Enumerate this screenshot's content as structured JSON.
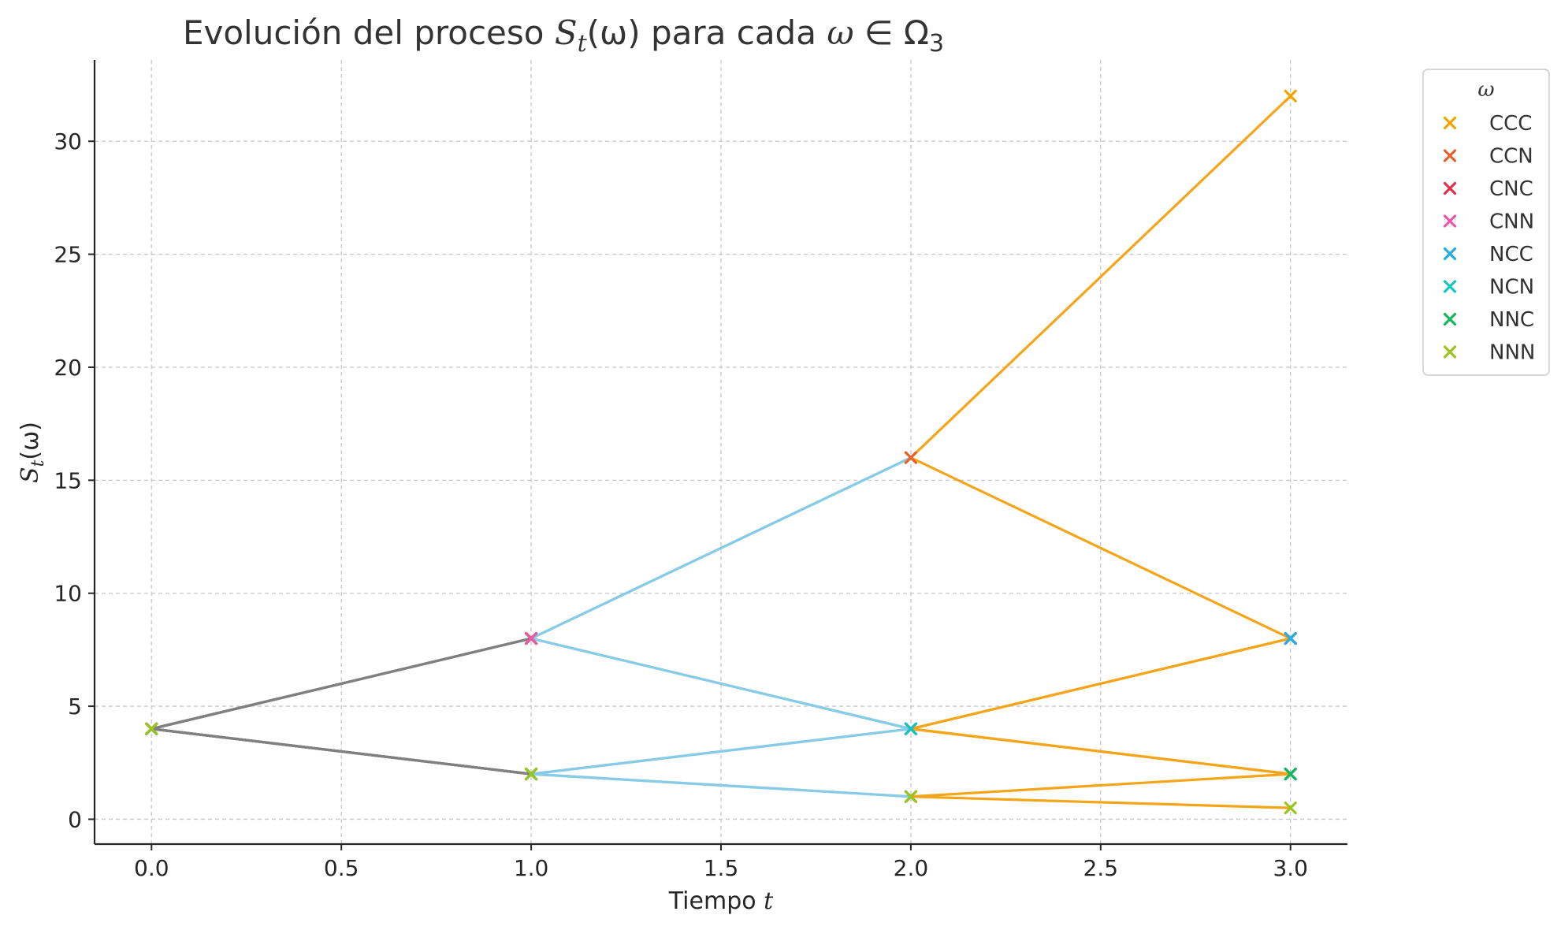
{
  "chart_data": {
    "type": "line",
    "title": {
      "prefix": "Evolución del proceso ",
      "sym_main": "S",
      "sym_sub": "t",
      "sym_arg": "(ω)",
      "middle": " para cada ",
      "omega": "ω",
      "elem": " ∈ ",
      "Omega": "Ω",
      "Omega_sub": "3"
    },
    "xlabel": {
      "text": "Tiempo ",
      "var": "t"
    },
    "ylabel": {
      "main": "S",
      "sub": "t",
      "arg": "(ω)"
    },
    "xlim": [
      -0.15,
      3.15
    ],
    "ylim": [
      -1.1,
      33.6
    ],
    "xticks": [
      0.0,
      0.5,
      1.0,
      1.5,
      2.0,
      2.5,
      3.0
    ],
    "xtick_labels": [
      "0.0",
      "0.5",
      "1.0",
      "1.5",
      "2.0",
      "2.5",
      "3.0"
    ],
    "yticks": [
      0,
      5,
      10,
      15,
      20,
      25,
      30
    ],
    "ytick_labels": [
      "0",
      "5",
      "10",
      "15",
      "20",
      "25",
      "30"
    ],
    "grid": true,
    "legend": {
      "title": "ω",
      "placement": "outside-top-right",
      "entries": [
        "CCC",
        "CCN",
        "CNC",
        "CNN",
        "NCC",
        "NCN",
        "NNC",
        "NNN"
      ],
      "colors": [
        "#f5a300",
        "#e8602c",
        "#e0304e",
        "#e85aa8",
        "#23aee5",
        "#17c5c0",
        "#13b65a",
        "#9dc31d"
      ]
    },
    "segment_colors": {
      "t0_t1": "#808080",
      "t1_t2": "#87cbe6",
      "t2_t3": "#f5a519"
    },
    "x": [
      0,
      1,
      2,
      3
    ],
    "series": [
      {
        "name": "CCC",
        "values": [
          4,
          8,
          16,
          32
        ]
      },
      {
        "name": "CCN",
        "values": [
          4,
          8,
          16,
          8
        ]
      },
      {
        "name": "CNC",
        "values": [
          4,
          8,
          4,
          8
        ]
      },
      {
        "name": "CNN",
        "values": [
          4,
          8,
          4,
          2
        ]
      },
      {
        "name": "NCC",
        "values": [
          4,
          2,
          4,
          8
        ]
      },
      {
        "name": "NCN",
        "values": [
          4,
          2,
          4,
          2
        ]
      },
      {
        "name": "NNC",
        "values": [
          4,
          2,
          1,
          2
        ]
      },
      {
        "name": "NNN",
        "values": [
          4,
          2,
          1,
          0.5
        ]
      }
    ]
  }
}
